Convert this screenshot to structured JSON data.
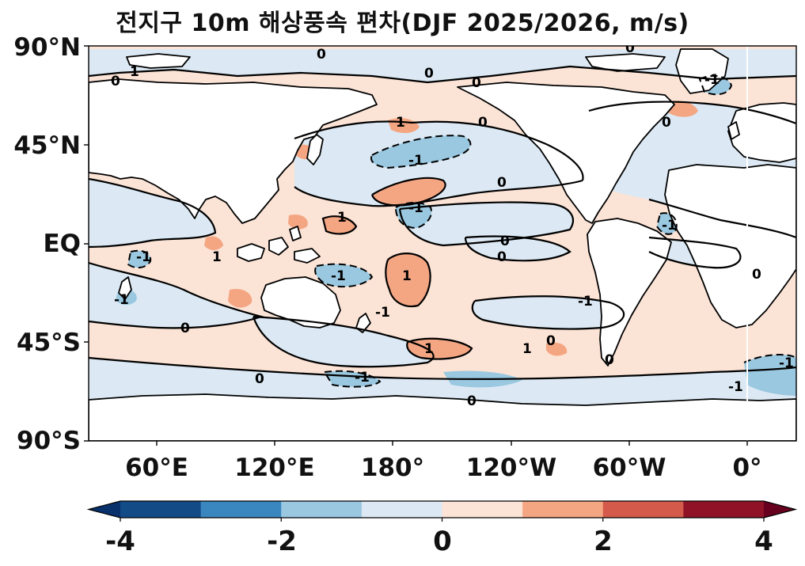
{
  "title": "전지구 10m 해상풍속 편차(DJF 2025/2026, m/s)",
  "map": {
    "y_ticks": [
      "90°N",
      "45°N",
      "EQ",
      "45°S",
      "90°S"
    ],
    "x_ticks": [
      "60°E",
      "120°E",
      "180°",
      "120°W",
      "60°W",
      "0°"
    ],
    "contour_labels": [
      "0",
      "-1",
      "1"
    ]
  },
  "colorbar": {
    "ticks": [
      "-4",
      "-2",
      "0",
      "2",
      "4"
    ],
    "levels": [
      -4,
      -3,
      -2,
      -1,
      0,
      1,
      2,
      3,
      4
    ],
    "colors": [
      "#134b87",
      "#3a87bf",
      "#9ac8e0",
      "#dce9f4",
      "#fbe3d6",
      "#f4a683",
      "#d45a4b",
      "#8f1227"
    ],
    "extend": "both"
  },
  "colors": {
    "land": "#ffffff",
    "ocean_base": "#fbe3d6",
    "contour": "#000000"
  }
}
